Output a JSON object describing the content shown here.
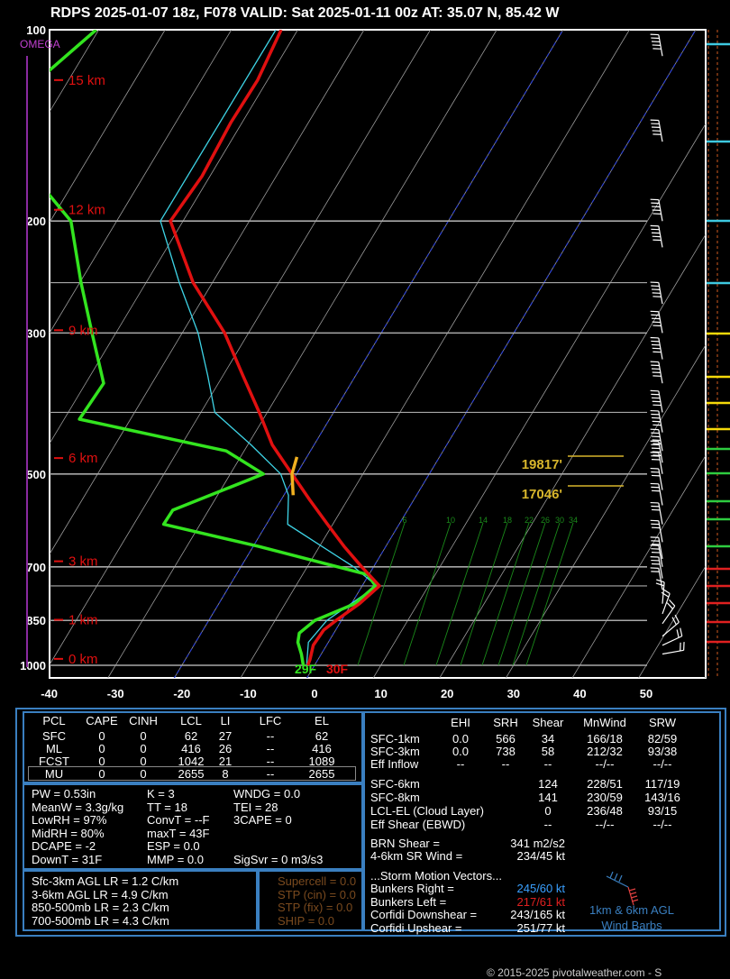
{
  "header": {
    "title": "RDPS 2025-01-07 18z, F078  VALID: Sat 2025-01-11 00z  AT: 35.07 N, 85.42 W"
  },
  "chart_data": {
    "type": "line",
    "title": "RDPS 2025-01-07 18z, F078  VALID: Sat 2025-01-11 00z  AT: 35.07 N, 85.42 W",
    "xlabel": "",
    "ylabel": "",
    "x_ticks": [
      -40,
      -30,
      -20,
      -10,
      0,
      10,
      20,
      30,
      40,
      50
    ],
    "p_ticks": [
      100,
      200,
      300,
      500,
      700,
      850,
      1000
    ],
    "height_labels": [
      {
        "label": "15 km",
        "p": 120
      },
      {
        "label": "12 km",
        "p": 192
      },
      {
        "label": "9 km",
        "p": 297
      },
      {
        "label": "6 km",
        "p": 472
      },
      {
        "label": "3 km",
        "p": 686
      },
      {
        "label": "1 km",
        "p": 848
      },
      {
        "label": "0 km",
        "p": 977
      }
    ],
    "omega_label": "OMEGA",
    "temperature_profile": [
      {
        "p": 1000,
        "t": -1.0
      },
      {
        "p": 980,
        "t": -1.2
      },
      {
        "p": 930,
        "t": -2.0
      },
      {
        "p": 880,
        "t": -1.8
      },
      {
        "p": 850,
        "t": -0.8
      },
      {
        "p": 800,
        "t": 1.2
      },
      {
        "p": 750,
        "t": 2.6
      },
      {
        "p": 700,
        "t": -1.8
      },
      {
        "p": 650,
        "t": -6.3
      },
      {
        "p": 600,
        "t": -10.8
      },
      {
        "p": 550,
        "t": -15.6
      },
      {
        "p": 500,
        "t": -20.7
      },
      {
        "p": 450,
        "t": -26.3
      },
      {
        "p": 400,
        "t": -31.2
      },
      {
        "p": 350,
        "t": -37.0
      },
      {
        "p": 300,
        "t": -43.6
      },
      {
        "p": 250,
        "t": -52.9
      },
      {
        "p": 200,
        "t": -61.9
      },
      {
        "p": 170,
        "t": -61.2
      },
      {
        "p": 140,
        "t": -61.7
      },
      {
        "p": 120,
        "t": -61.5
      },
      {
        "p": 100,
        "t": -62.5
      }
    ],
    "dewpoint_profile": [
      {
        "p": 1000,
        "t": -1.7
      },
      {
        "p": 960,
        "t": -3.0
      },
      {
        "p": 920,
        "t": -4.6
      },
      {
        "p": 890,
        "t": -5.2
      },
      {
        "p": 850,
        "t": -4.0
      },
      {
        "p": 800,
        "t": 0.5
      },
      {
        "p": 750,
        "t": 2.0
      },
      {
        "p": 720,
        "t": -0.2
      },
      {
        "p": 650,
        "t": -19.2
      },
      {
        "p": 600,
        "t": -35.5
      },
      {
        "p": 570,
        "t": -35.4
      },
      {
        "p": 500,
        "t": -25.0
      },
      {
        "p": 460,
        "t": -32.7
      },
      {
        "p": 410,
        "t": -57.7
      },
      {
        "p": 360,
        "t": -57.3
      },
      {
        "p": 300,
        "t": -63.6
      },
      {
        "p": 250,
        "t": -69.8
      },
      {
        "p": 200,
        "t": -76.9
      },
      {
        "p": 140,
        "t": -98.1
      },
      {
        "p": 100,
        "t": -90.4
      }
    ],
    "wetbulb_profile": [
      {
        "p": 1000,
        "t": -1.2
      },
      {
        "p": 920,
        "t": -3.0
      },
      {
        "p": 850,
        "t": -2.2
      },
      {
        "p": 750,
        "t": 2.2
      },
      {
        "p": 700,
        "t": -3.0
      },
      {
        "p": 600,
        "t": -16.8
      },
      {
        "p": 540,
        "t": -19.3
      },
      {
        "p": 500,
        "t": -22.4
      },
      {
        "p": 450,
        "t": -29.5
      },
      {
        "p": 400,
        "t": -37.9
      },
      {
        "p": 350,
        "t": -42.3
      },
      {
        "p": 300,
        "t": -47.6
      },
      {
        "p": 250,
        "t": -55.0
      },
      {
        "p": 200,
        "t": -63.4
      },
      {
        "p": 100,
        "t": -63.3
      }
    ],
    "surface_labels": {
      "dewpoint": "29F",
      "temperature": "30F"
    },
    "level_labels": [
      {
        "label": "19817'",
        "p": 490
      },
      {
        "label": "17046'",
        "p": 522
      }
    ],
    "mixing_ratio_labels": [
      "6",
      "10",
      "14",
      "18",
      "22",
      "26",
      "30",
      "34"
    ],
    "right_bar_colors": [
      "#3ec9e0",
      "#3ec9e0",
      "#3ec9e0",
      "#3ec9e0",
      "#f5d90a",
      "#f5d90a",
      "#f5d90a",
      "#f5d90a",
      "#2ecc40",
      "#2ecc40",
      "#2ecc40",
      "#2ecc40",
      "#2ecc40",
      "#e02020",
      "#e02020",
      "#e02020",
      "#e02020",
      "#e02020"
    ]
  },
  "parcel_table": {
    "headers": [
      "PCL",
      "CAPE",
      "CINH",
      "LCL",
      "LI",
      "LFC",
      "EL"
    ],
    "rows": [
      [
        "SFC",
        "0",
        "0",
        "62",
        "27",
        "--",
        "62"
      ],
      [
        "ML",
        "0",
        "0",
        "416",
        "26",
        "--",
        "416"
      ],
      [
        "FCST",
        "0",
        "0",
        "1042",
        "21",
        "--",
        "1089"
      ],
      [
        "MU",
        "0",
        "0",
        "2655",
        "8",
        "--",
        "2655"
      ]
    ]
  },
  "thermo": {
    "col1": [
      "PW = 0.53in",
      "MeanW = 3.3g/kg",
      "LowRH = 97%",
      "MidRH = 80%",
      "DCAPE = -2",
      "DownT = 31F"
    ],
    "col2": [
      "K = 3",
      "TT = 18",
      "ConvT = --F",
      "maxT = 43F",
      "ESP = 0.0",
      "MMP = 0.0"
    ],
    "col3": [
      "WNDG = 0.0",
      "TEI = 28",
      "3CAPE = 0",
      "",
      "",
      "SigSvr = 0 m3/s3"
    ]
  },
  "lapse_rates": [
    "Sfc-3km AGL LR = 1.2 C/km",
    "3-6km AGL LR = 4.9 C/km",
    "850-500mb LR = 2.3 C/km",
    "700-500mb LR = 4.3 C/km"
  ],
  "composites": [
    "Supercell = 0.0",
    "STP (cin) = 0.0",
    "STP (fix) = 0.0",
    "SHIP = 0.0"
  ],
  "kinematics": {
    "headers": [
      "EHI",
      "SRH",
      "Shear",
      "MnWind",
      "SRW"
    ],
    "rows": [
      [
        "SFC-1km",
        "0.0",
        "566",
        "34",
        "166/18",
        "82/59"
      ],
      [
        "SFC-3km",
        "0.0",
        "738",
        "58",
        "212/32",
        "93/38"
      ],
      [
        "Eff Inflow",
        "--",
        "--",
        "--",
        "--/--",
        "--/--"
      ],
      [
        "SFC-6km",
        "",
        "",
        "124",
        "228/51",
        "117/19"
      ],
      [
        "SFC-8km",
        "",
        "",
        "141",
        "230/59",
        "143/16"
      ],
      [
        "LCL-EL (Cloud Layer)",
        "",
        "",
        "0",
        "236/48",
        "93/15"
      ],
      [
        "Eff Shear (EBWD)",
        "",
        "",
        "--",
        "--/--",
        "--/--"
      ]
    ],
    "brn_shear_label": "BRN Shear =",
    "brn_shear_value": "341 m2/s2",
    "sr_wind_label": "4-6km SR Wind =",
    "sr_wind_value": "234/45 kt"
  },
  "storm_motion": {
    "title": "...Storm Motion Vectors...",
    "rows": [
      {
        "label": "Bunkers Right =",
        "value": "245/60 kt",
        "color": "#3aa0ff"
      },
      {
        "label": "Bunkers Left =",
        "value": "217/61 kt",
        "color": "#e02020"
      },
      {
        "label": "Corfidi Downshear =",
        "value": "243/165 kt",
        "color": "#ffffff"
      },
      {
        "label": "Corfidi Upshear =",
        "value": "251/77 kt",
        "color": "#ffffff"
      }
    ]
  },
  "wind_legend": {
    "line1": "1km & 6km AGL",
    "line2": "Wind Barbs"
  },
  "copyright": "© 2015-2025 pivotalweather.com - S"
}
